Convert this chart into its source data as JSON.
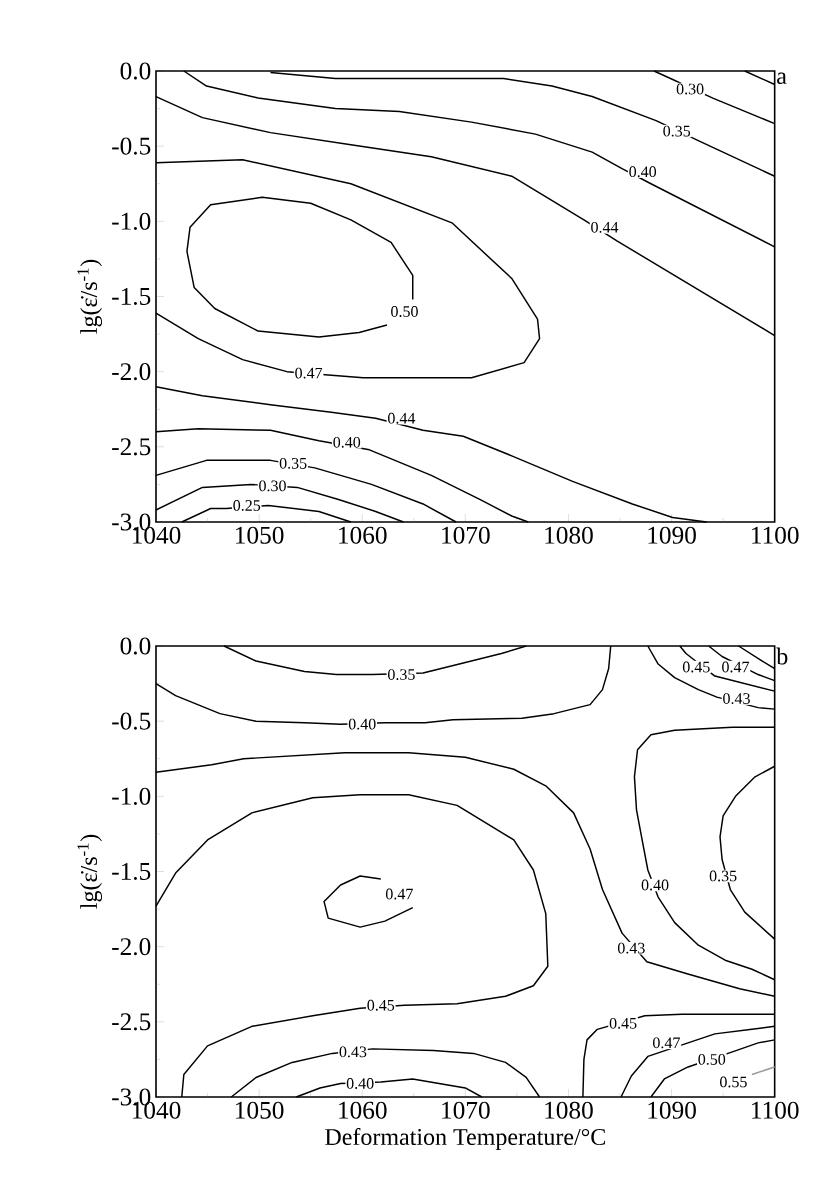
{
  "chart_data": [
    {
      "type": "line",
      "ylabel": "lg(ε̇/s$^{-1}$)",
      "xlim": [
        1040,
        1100
      ],
      "ylim": [
        -3.0,
        0.0
      ],
      "xticks": [
        1040,
        1050,
        1060,
        1070,
        1080,
        1090,
        1100,
        {
          "value": 1045,
          "label": null
        },
        {
          "value": 1055,
          "label": null
        },
        {
          "value": 1065,
          "label": null
        },
        {
          "value": 1075,
          "label": null
        },
        {
          "value": 1085,
          "label": null
        },
        {
          "value": 1095,
          "label": null
        }
      ],
      "yticks": [
        {
          "value": 0.0,
          "label": "0.0"
        },
        {
          "value": -0.5,
          "label": "-0.5"
        },
        {
          "value": -1.0,
          "label": "-1.0"
        },
        {
          "value": -1.5,
          "label": "-1.5"
        },
        {
          "value": -2.0,
          "label": "-2.0"
        },
        {
          "value": -2.5,
          "label": "-2.5"
        },
        {
          "value": -3.0,
          "label": "-3.0"
        },
        {
          "value": -0.25,
          "label": null
        },
        {
          "value": -0.75,
          "label": null
        },
        {
          "value": -1.25,
          "label": null
        },
        {
          "value": -1.75,
          "label": null
        },
        {
          "value": -2.25,
          "label": null
        },
        {
          "value": -2.75,
          "label": null
        }
      ],
      "series": [
        {
          "color": "#000000",
          "x": [
            1097.1,
            1100
          ],
          "values": [
            0.0,
            -0.09
          ]
        },
        {
          "color": "#000000",
          "x": [
            1088.3,
            1089.9,
            1094.0,
            1100
          ],
          "values": [
            0.0,
            -0.05,
            -0.18,
            -0.35
          ]
        },
        {
          "color": "#000000",
          "x": [
            1051.1,
            1057.4,
            1067.5,
            1073.7,
            1078.4,
            1082.3,
            1088.5,
            1092.8,
            1100
          ],
          "values": [
            -0.01,
            -0.05,
            -0.05,
            -0.05,
            -0.1,
            -0.17,
            -0.33,
            -0.47,
            -0.7
          ]
        },
        {
          "color": "#000000",
          "x": [
            1042.7,
            1044.9,
            1049.9,
            1057.4,
            1063.6,
            1070.6,
            1076.8,
            1082.3,
            1085.2,
            1088.0,
            1100
          ],
          "values": [
            0.0,
            -0.1,
            -0.18,
            -0.25,
            -0.27,
            -0.34,
            -0.42,
            -0.54,
            -0.65,
            -0.75,
            -1.17
          ]
        },
        {
          "color": "#000000",
          "x": [
            1040,
            1044.5,
            1051.1,
            1058.9,
            1066.7,
            1074.5,
            1081.5,
            1084.7,
            1100
          ],
          "values": [
            -0.17,
            -0.31,
            -0.41,
            -0.49,
            -0.57,
            -0.7,
            -0.99,
            -1.13,
            -1.76
          ]
        },
        {
          "color": "#000000",
          "x": [
            1040,
            1048.4,
            1058.9,
            1068.7,
            1074.5,
            1077.0,
            1077.2,
            1075.7,
            1070.6,
            1060.1,
            1052.7,
            1048.4,
            1044.1,
            1040
          ],
          "values": [
            -0.61,
            -0.59,
            -0.75,
            -1.01,
            -1.38,
            -1.65,
            -1.78,
            -1.94,
            -2.04,
            -2.04,
            -2.0,
            -1.92,
            -1.78,
            -1.61
          ]
        },
        {
          "color": "#000000",
          "x": [
            1064.9,
            1064.9,
            1062.8,
            1058.9,
            1055.0,
            1050.3,
            1045.3,
            1043.3,
            1043.0,
            1043.7,
            1045.7,
            1049.9,
            1055.8,
            1059.7,
            1062.4
          ],
          "values": [
            -1.52,
            -1.36,
            -1.14,
            -0.99,
            -0.88,
            -0.84,
            -0.89,
            -1.04,
            -1.2,
            -1.44,
            -1.58,
            -1.73,
            -1.77,
            -1.74,
            -1.69
          ]
        },
        {
          "color": "#000000",
          "x": [
            1040,
            1044.5,
            1051.1,
            1057.0,
            1061.3,
            1065.9,
            1069.8,
            1074.5,
            1080.4,
            1086.2,
            1090.1,
            1093.4
          ],
          "values": [
            -2.1,
            -2.16,
            -2.22,
            -2.27,
            -2.31,
            -2.39,
            -2.43,
            -2.56,
            -2.73,
            -2.88,
            -2.97,
            -3.0
          ]
        },
        {
          "color": "#000000",
          "x": [
            1040,
            1044.1,
            1051.1,
            1055.8,
            1060.7,
            1066.7,
            1071.4,
            1074.5,
            1076.1
          ],
          "values": [
            -2.4,
            -2.38,
            -2.39,
            -2.46,
            -2.52,
            -2.69,
            -2.85,
            -2.96,
            -3.0
          ]
        },
        {
          "color": "#000000",
          "x": [
            1040,
            1044.9,
            1051.1,
            1055.4,
            1060.9,
            1065.9,
            1069.1
          ],
          "values": [
            -2.69,
            -2.59,
            -2.59,
            -2.64,
            -2.75,
            -2.88,
            -3.0
          ]
        },
        {
          "color": "#000000",
          "x": [
            1040,
            1044.5,
            1049.2,
            1053.7,
            1057.7,
            1061.3,
            1064.0
          ],
          "values": [
            -2.92,
            -2.77,
            -2.75,
            -2.77,
            -2.85,
            -2.93,
            -3.0
          ]
        },
        {
          "color": "#000000",
          "x": [
            1042.5,
            1045.3,
            1046.8,
            1050.9,
            1055.8,
            1058.9
          ],
          "values": [
            -3.0,
            -2.91,
            -2.91,
            -2.89,
            -2.93,
            -3.0
          ]
        }
      ],
      "annotations": [
        "a",
        {
          "text": "0.30",
          "x": 1091.8,
          "y": -0.12
        },
        {
          "text": "0.35",
          "x": 1090.5,
          "y": -0.4
        },
        {
          "text": "0.40",
          "x": 1087.2,
          "y": -0.67
        },
        {
          "text": "0.44",
          "x": 1083.5,
          "y": -1.04
        },
        {
          "text": "0.50",
          "x": 1064.1,
          "y": -1.6
        },
        {
          "text": "0.47",
          "x": 1054.8,
          "y": -2.01
        },
        {
          "text": "0.44",
          "x": 1063.8,
          "y": -2.31
        },
        {
          "text": "0.40",
          "x": 1058.5,
          "y": -2.47
        },
        {
          "text": "0.35",
          "x": 1053.3,
          "y": -2.61
        },
        {
          "text": "0.30",
          "x": 1051.3,
          "y": -2.76
        },
        {
          "text": "0.25",
          "x": 1048.8,
          "y": -2.89
        }
      ]
    },
    {
      "type": "line",
      "xlabel": "Deformation Temperature/°C",
      "ylabel": "lg(ε̇/s$^{-1}$)",
      "xlim": [
        1040,
        1100
      ],
      "ylim": [
        -3.0,
        0.0
      ],
      "xticks": [
        1040,
        1050,
        1060,
        1070,
        1080,
        1090,
        1100,
        {
          "value": 1045,
          "label": null
        },
        {
          "value": 1055,
          "label": null
        },
        {
          "value": 1065,
          "label": null
        },
        {
          "value": 1075,
          "label": null
        },
        {
          "value": 1085,
          "label": null
        },
        {
          "value": 1095,
          "label": null
        }
      ],
      "yticks": [
        {
          "value": 0.0,
          "label": "0.0"
        },
        {
          "value": -0.5,
          "label": "-0.5"
        },
        {
          "value": -1.0,
          "label": "-1.0"
        },
        {
          "value": -1.5,
          "label": "-1.5"
        },
        {
          "value": -2.0,
          "label": "-2.0"
        },
        {
          "value": -2.5,
          "label": "-2.5"
        },
        {
          "value": -3.0,
          "label": "-3.0"
        },
        {
          "value": -0.25,
          "label": null
        },
        {
          "value": -0.75,
          "label": null
        },
        {
          "value": -1.25,
          "label": null
        },
        {
          "value": -1.75,
          "label": null
        },
        {
          "value": -2.25,
          "label": null
        },
        {
          "value": -2.75,
          "label": null
        }
      ],
      "series": [
        {
          "color": "#000000",
          "x": [
            1046.6,
            1049.7,
            1054.4,
            1057.5,
            1061.0,
            1065.9,
            1070.0,
            1073.5,
            1075.9
          ],
          "values": [
            0.0,
            -0.1,
            -0.17,
            -0.19,
            -0.19,
            -0.18,
            -0.11,
            -0.05,
            0.0
          ]
        },
        {
          "color": "#000000",
          "x": [
            1040,
            1041.9,
            1046.2,
            1049.7,
            1054.4,
            1057.9,
            1062.2,
            1066.1,
            1068.8,
            1075.5,
            1078.6,
            1082.1,
            1083.3,
            1083.9,
            1084.1
          ],
          "values": [
            -0.25,
            -0.33,
            -0.45,
            -0.5,
            -0.51,
            -0.52,
            -0.51,
            -0.51,
            -0.49,
            -0.48,
            -0.45,
            -0.39,
            -0.29,
            -0.15,
            0.0
          ]
        },
        {
          "color": "#000000",
          "x": [
            1040,
            1045.4,
            1048.5,
            1058.3,
            1064.5,
            1070.0,
            1074.7,
            1077.8,
            1080.5,
            1082.1,
            1083.3,
            1085.2,
            1087.6,
            1091.5,
            1096.6,
            1100
          ],
          "values": [
            -0.84,
            -0.79,
            -0.75,
            -0.71,
            -0.71,
            -0.74,
            -0.82,
            -0.93,
            -1.11,
            -1.35,
            -1.62,
            -1.91,
            -2.1,
            -2.18,
            -2.28,
            -2.33
          ]
        },
        {
          "color": "#000000",
          "x": [
            1040,
            1041.9,
            1045.0,
            1049.3,
            1055.2,
            1059.8,
            1064.5,
            1069.2,
            1074.7,
            1076.6,
            1077.8,
            1078.0,
            1076.6,
            1073.9,
            1069.2,
            1064.1,
            1059.8,
            1055.2,
            1049.3,
            1045.0,
            1042.7,
            1042.5
          ],
          "values": [
            -1.73,
            -1.51,
            -1.29,
            -1.11,
            -1.01,
            -0.99,
            -0.99,
            -1.06,
            -1.29,
            -1.49,
            -1.78,
            -2.13,
            -2.26,
            -2.33,
            -2.38,
            -2.39,
            -2.41,
            -2.46,
            -2.53,
            -2.66,
            -2.85,
            -3.0
          ]
        },
        {
          "color": "#000000",
          "x": [
            1061.8,
            1059.8,
            1057.9,
            1056.3,
            1056.7,
            1059.8,
            1062.2,
            1064.9
          ],
          "values": [
            -1.55,
            -1.53,
            -1.59,
            -1.7,
            -1.81,
            -1.87,
            -1.83,
            -1.74
          ]
        },
        {
          "color": "#000000",
          "x": [
            1047.3,
            1049.7,
            1053.2,
            1057.1,
            1061.0,
            1066.9,
            1070.8,
            1073.9,
            1075.9,
            1077.2
          ],
          "values": [
            -3.0,
            -2.87,
            -2.77,
            -2.71,
            -2.68,
            -2.69,
            -2.71,
            -2.77,
            -2.87,
            -3.0
          ]
        },
        {
          "color": "#000000",
          "x": [
            1053.6,
            1055.9,
            1057.9,
            1061.8,
            1064.9,
            1070.0,
            1071.6
          ],
          "values": [
            -3.0,
            -2.94,
            -2.91,
            -2.9,
            -2.88,
            -2.94,
            -3.0
          ]
        },
        {
          "color": "#000000",
          "x": [
            1100,
            1095.9,
            1090.3,
            1088.0,
            1086.7,
            1086.4,
            1086.6,
            1087.2,
            1087.7,
            1088.7,
            1090.3,
            1092.6,
            1095.2,
            1097.8,
            1100
          ],
          "values": [
            -0.54,
            -0.54,
            -0.56,
            -0.59,
            -0.69,
            -0.87,
            -1.09,
            -1.31,
            -1.49,
            -1.67,
            -1.84,
            -1.99,
            -2.09,
            -2.15,
            -2.22
          ]
        },
        {
          "color": "#000000",
          "x": [
            1100,
            1098.1,
            1096.2,
            1095.0,
            1094.7,
            1094.9,
            1095.7,
            1097.1,
            1100
          ],
          "values": [
            -0.8,
            -0.87,
            -1.0,
            -1.13,
            -1.27,
            -1.42,
            -1.62,
            -1.77,
            -1.95
          ]
        },
        {
          "color": "#000000",
          "x": [
            1087.7,
            1088.7,
            1090.3,
            1092.6,
            1094.4,
            1098.4,
            1100
          ],
          "values": [
            0.0,
            -0.12,
            -0.21,
            -0.29,
            -0.34,
            -0.41,
            -0.42
          ]
        },
        {
          "color": "#000000",
          "x": [
            1090.8,
            1091.4,
            1094.2,
            1097.1,
            1100
          ],
          "values": [
            0.0,
            -0.05,
            -0.2,
            -0.25,
            -0.3
          ]
        },
        {
          "color": "#000000",
          "x": [
            1093.6,
            1094.9,
            1098.4,
            1100
          ],
          "values": [
            0.0,
            -0.07,
            -0.19,
            -0.23
          ]
        },
        {
          "color": "#000000",
          "x": [
            1096.5,
            1098.8,
            1100
          ],
          "values": [
            0.0,
            -0.1,
            -0.15
          ]
        },
        {
          "color": "#000000",
          "x": [
            1081.4,
            1081.5,
            1081.8,
            1082.8,
            1087.4,
            1091.0,
            1100
          ],
          "values": [
            -3.0,
            -2.75,
            -2.62,
            -2.55,
            -2.46,
            -2.45,
            -2.45
          ]
        },
        {
          "color": "#000000",
          "x": [
            1085.1,
            1086.1,
            1087.7,
            1091.6,
            1094.2,
            1097.8,
            1100
          ],
          "values": [
            -3.0,
            -2.86,
            -2.73,
            -2.64,
            -2.58,
            -2.55,
            -2.53
          ]
        },
        {
          "color": "#000000",
          "x": [
            1088.0,
            1089.3,
            1091.6,
            1095.9,
            1098.4,
            1100
          ],
          "values": [
            -3.0,
            -2.88,
            -2.8,
            -2.7,
            -2.64,
            -2.62
          ]
        },
        {
          "color": "#999999",
          "x": [
            1097.8,
            1100
          ],
          "values": [
            -2.85,
            -2.8
          ]
        }
      ],
      "annotations": [
        "b",
        {
          "text": "0.35",
          "x": 1063.8,
          "y": -0.19
        },
        {
          "text": "0.40",
          "x": 1060.0,
          "y": -0.52
        },
        {
          "text": "0.47",
          "x": 1063.6,
          "y": -1.65
        },
        {
          "text": "0.43",
          "x": 1086.1,
          "y": -2.01
        },
        {
          "text": "0.40",
          "x": 1088.4,
          "y": -1.59
        },
        {
          "text": "0.35",
          "x": 1095.0,
          "y": -1.53
        },
        {
          "text": "0.45",
          "x": 1092.4,
          "y": -0.14
        },
        {
          "text": "0.47",
          "x": 1096.2,
          "y": -0.14
        },
        {
          "text": "0.43",
          "x": 1096.3,
          "y": -0.35
        },
        {
          "text": "0.45",
          "x": 1061.8,
          "y": -2.39
        },
        {
          "text": "0.43",
          "x": 1059.1,
          "y": -2.7
        },
        {
          "text": "0.40",
          "x": 1059.8,
          "y": -2.91
        },
        {
          "text": "0.45",
          "x": 1085.3,
          "y": -2.51
        },
        {
          "text": "0.47",
          "x": 1089.5,
          "y": -2.64
        },
        {
          "text": "0.50",
          "x": 1093.9,
          "y": -2.75
        },
        {
          "text": "0.55",
          "x": 1096.0,
          "y": -2.9
        }
      ]
    }
  ]
}
